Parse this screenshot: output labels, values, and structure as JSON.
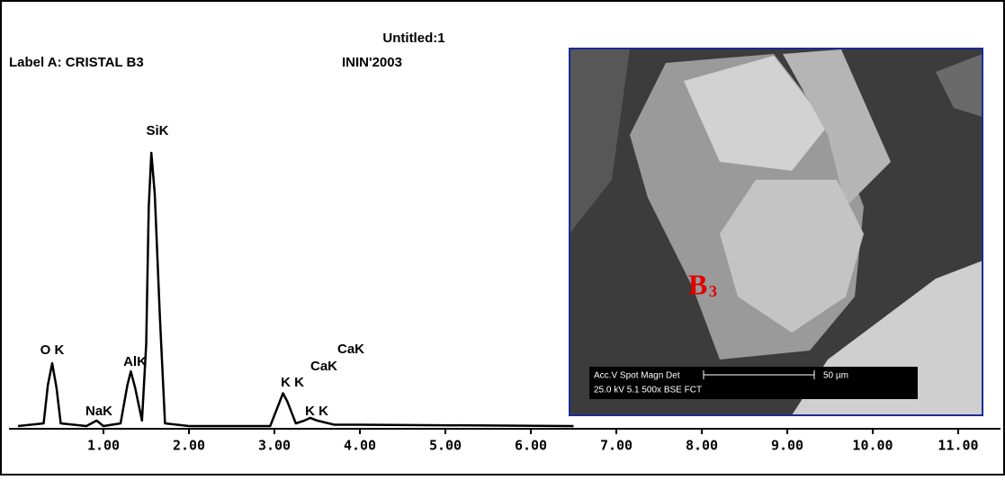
{
  "chart_data": {
    "type": "line",
    "title": "Untitled:1",
    "subtitle": "Label A: CRISTAL  B3",
    "source": "ININ'2003",
    "x": [
      0,
      0.3,
      0.35,
      0.4,
      0.45,
      0.5,
      0.8,
      0.92,
      1.0,
      1.2,
      1.28,
      1.32,
      1.37,
      1.45,
      1.5,
      1.53,
      1.56,
      1.6,
      1.66,
      1.72,
      2.0,
      2.95,
      3.05,
      3.1,
      3.15,
      3.25,
      3.35,
      3.42,
      3.5,
      3.7,
      4.0,
      6.5
    ],
    "values": [
      0,
      1,
      15,
      23,
      14,
      1,
      0,
      2,
      0,
      1,
      15,
      20,
      14,
      2,
      30,
      80,
      100,
      85,
      40,
      1,
      0,
      0,
      8,
      12,
      9,
      1,
      2,
      3,
      2,
      0.5,
      0.5,
      0
    ],
    "color": "#000000",
    "xlim": [
      -0.1,
      11.5
    ],
    "ylim": [
      0,
      100
    ],
    "xticks": [
      {
        "value": 1,
        "label": "1.00"
      },
      {
        "value": 2,
        "label": "2.00"
      },
      {
        "value": 3,
        "label": "3.00"
      },
      {
        "value": 4,
        "label": "4.00"
      },
      {
        "value": 5,
        "label": "5.00"
      },
      {
        "value": 6,
        "label": "6.00"
      },
      {
        "value": 7,
        "label": "7.00"
      },
      {
        "value": 8,
        "label": "8.00"
      },
      {
        "value": 9,
        "label": "9.00"
      },
      {
        "value": 10,
        "label": "10.00"
      },
      {
        "value": 11,
        "label": "11.00"
      }
    ],
    "peak_labels": [
      "O K",
      "NaK",
      "AlK",
      "SiK",
      "K K",
      "K K",
      "CaK",
      "CaK"
    ],
    "inset": {
      "label": "B",
      "label_sub": "3",
      "info_line1": "Acc.V  Spot Magn   Det",
      "info_line2": "25.0 kV 5.1   500x    BSE FCT",
      "scale": "50 µm"
    }
  }
}
